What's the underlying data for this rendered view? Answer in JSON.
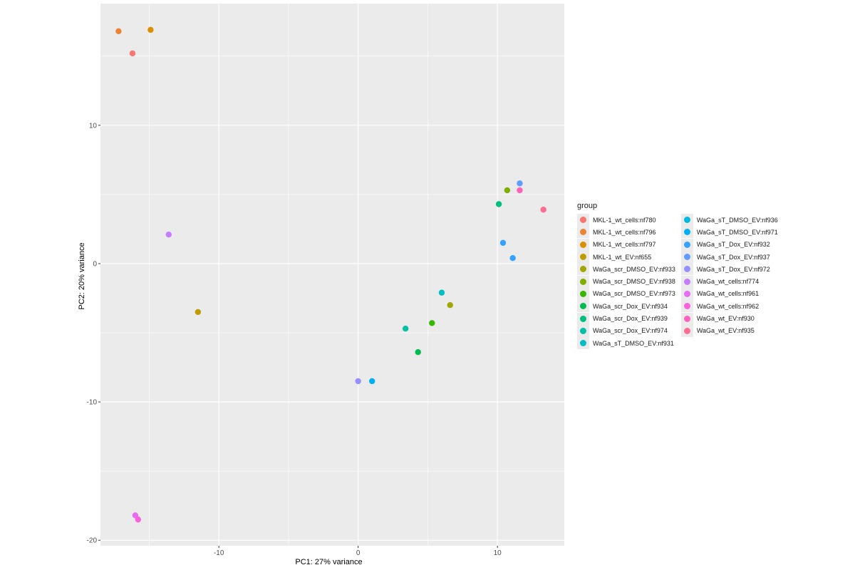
{
  "chart_data": {
    "type": "scatter",
    "title": "",
    "xlabel": "PC1: 27% variance",
    "ylabel": "PC2: 20% variance",
    "xlim": [
      -18.5,
      14.8
    ],
    "ylim": [
      -20.4,
      18.8
    ],
    "xticks": [
      -10,
      0,
      10
    ],
    "yticks": [
      -20,
      -10,
      0,
      10
    ],
    "grid": true,
    "panel_background": "#ebebeb",
    "legend": {
      "title": "group",
      "placement": "right",
      "columns": 2
    },
    "series": [
      {
        "name": "MKL-1_wt_cells:nf780",
        "color": "#F8766D",
        "x": [
          -16.2
        ],
        "y": [
          15.2
        ]
      },
      {
        "name": "MKL-1_wt_cells:nf796",
        "color": "#EA8331",
        "x": [
          -17.2
        ],
        "y": [
          16.8
        ]
      },
      {
        "name": "MKL-1_wt_cells:nf797",
        "color": "#D89000",
        "x": [
          -14.9
        ],
        "y": [
          16.9
        ]
      },
      {
        "name": "MKL-1_wt_EV:nf655",
        "color": "#C09B00",
        "x": [
          -11.5
        ],
        "y": [
          -3.5
        ]
      },
      {
        "name": "WaGa_scr_DMSO_EV:nf933",
        "color": "#A3A500",
        "x": [
          6.6
        ],
        "y": [
          -3.0
        ]
      },
      {
        "name": "WaGa_scr_DMSO_EV:nf938",
        "color": "#7CAE00",
        "x": [
          10.7
        ],
        "y": [
          5.3
        ]
      },
      {
        "name": "WaGa_scr_DMSO_EV:nf973",
        "color": "#39B600",
        "x": [
          5.3
        ],
        "y": [
          -4.3
        ]
      },
      {
        "name": "WaGa_scr_Dox_EV:nf934",
        "color": "#00BB4E",
        "x": [
          4.3
        ],
        "y": [
          -6.4
        ]
      },
      {
        "name": "WaGa_scr_Dox_EV:nf939",
        "color": "#00BF7D",
        "x": [
          10.1
        ],
        "y": [
          4.3
        ]
      },
      {
        "name": "WaGa_scr_Dox_EV:nf974",
        "color": "#00C1A3",
        "x": [
          3.4
        ],
        "y": [
          -4.7
        ]
      },
      {
        "name": "WaGa_sT_DMSO_EV:nf931",
        "color": "#00BFC4",
        "x": [
          6.0
        ],
        "y": [
          -2.1
        ]
      },
      {
        "name": "WaGa_sT_DMSO_EV:nf936",
        "color": "#00BAE0",
        "x": [],
        "y": []
      },
      {
        "name": "WaGa_sT_DMSO_EV:nf971",
        "color": "#00B0F6",
        "x": [
          1.0
        ],
        "y": [
          -8.5
        ]
      },
      {
        "name": "WaGa_sT_Dox_EV:nf932",
        "color": "#35A2FF",
        "x": [
          10.4,
          11.1
        ],
        "y": [
          1.5,
          0.4
        ]
      },
      {
        "name": "WaGa_sT_Dox_EV:nf937",
        "color": "#619CFF",
        "x": [
          11.6
        ],
        "y": [
          5.8
        ]
      },
      {
        "name": "WaGa_sT_Dox_EV:nf972",
        "color": "#9590FF",
        "x": [
          0.0
        ],
        "y": [
          -8.5
        ]
      },
      {
        "name": "WaGa_wt_cells:nf774",
        "color": "#C77CFF",
        "x": [
          -13.6
        ],
        "y": [
          2.1
        ]
      },
      {
        "name": "WaGa_wt_cells:nf961",
        "color": "#E76BF3",
        "x": [
          -16.0
        ],
        "y": [
          -18.2
        ]
      },
      {
        "name": "WaGa_wt_cells:nf962",
        "color": "#FA62DB",
        "x": [
          -15.8
        ],
        "y": [
          -18.5
        ]
      },
      {
        "name": "WaGa_wt_EV:nf930",
        "color": "#FF62BC",
        "x": [
          11.6
        ],
        "y": [
          5.3
        ]
      },
      {
        "name": "WaGa_wt_EV:nf935",
        "color": "#FF6C91",
        "x": [
          13.3
        ],
        "y": [
          3.9
        ]
      }
    ]
  }
}
